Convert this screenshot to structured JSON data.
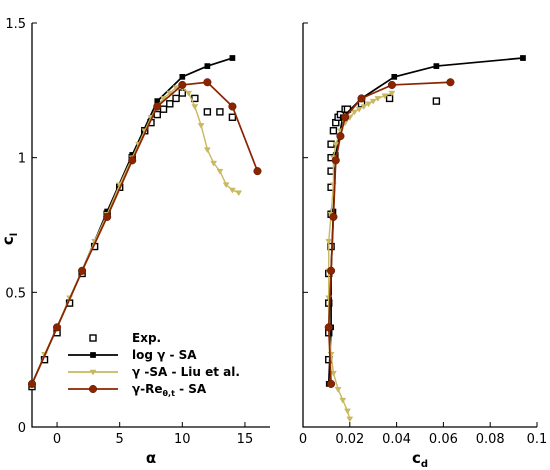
{
  "chart_data": [
    {
      "type": "line",
      "xlabel": "α",
      "ylabel_main": "c",
      "ylabel_sub": "l",
      "xlim": [
        -2,
        17
      ],
      "ylim": [
        0,
        1.5
      ],
      "xticks": [
        0,
        5,
        10,
        15
      ],
      "xtick_labels": [
        "0",
        "5",
        "10",
        "15"
      ],
      "yticks": [
        0,
        0.5,
        1,
        1.5
      ],
      "ytick_labels": [
        "0",
        "0.5",
        "1",
        "1.5"
      ],
      "series": [
        {
          "name": "Exp.",
          "key": "exp",
          "color": "#000000",
          "marker": "hollow-square",
          "line": false,
          "x": [
            -2,
            -1,
            0,
            1,
            2,
            3,
            4,
            5,
            6,
            7,
            7.5,
            8,
            8.5,
            9,
            9.5,
            10,
            11,
            12,
            13,
            14
          ],
          "y": [
            0.15,
            0.25,
            0.35,
            0.46,
            0.57,
            0.67,
            0.79,
            0.89,
            1.0,
            1.1,
            1.13,
            1.16,
            1.18,
            1.2,
            1.22,
            1.24,
            1.22,
            1.17,
            1.17,
            1.15
          ]
        },
        {
          "name": "log γ - SA",
          "key": "log_sa",
          "color": "#000000",
          "marker": "filled-square",
          "line": true,
          "x": [
            -2,
            0,
            2,
            4,
            6,
            8,
            10,
            12,
            14
          ],
          "y": [
            0.16,
            0.37,
            0.58,
            0.8,
            1.01,
            1.21,
            1.3,
            1.34,
            1.37
          ]
        },
        {
          "name": "γ -SA - Liu et al.",
          "key": "liu",
          "color": "#c8b860",
          "marker": "triangle-down",
          "line": true,
          "x": [
            -2,
            -1,
            0,
            1,
            2,
            3,
            4,
            5,
            6,
            6.5,
            7,
            7.5,
            8,
            8.5,
            9,
            9.5,
            10,
            10.5,
            11,
            11.5,
            12,
            12.5,
            13,
            13.5,
            14,
            14.5
          ],
          "y": [
            0.16,
            0.27,
            0.37,
            0.48,
            0.58,
            0.69,
            0.79,
            0.9,
            1.0,
            1.05,
            1.1,
            1.15,
            1.19,
            1.22,
            1.24,
            1.26,
            1.26,
            1.24,
            1.19,
            1.12,
            1.03,
            0.98,
            0.95,
            0.9,
            0.88,
            0.87
          ]
        },
        {
          "name": "γ-Re",
          "name_sub": "θ,t",
          "name_suffix": " - SA",
          "key": "re_theta",
          "color": "#8b2500",
          "marker": "filled-circle",
          "line": true,
          "x": [
            -2,
            0,
            2,
            4,
            6,
            8,
            10,
            12,
            14,
            16
          ],
          "y": [
            0.16,
            0.37,
            0.58,
            0.78,
            0.99,
            1.19,
            1.27,
            1.28,
            1.19,
            0.95
          ]
        }
      ]
    },
    {
      "type": "line",
      "xlabel_main": "c",
      "xlabel_sub": "d",
      "xlim": [
        0,
        0.1
      ],
      "ylim": [
        0,
        1.5
      ],
      "xticks": [
        0,
        0.02,
        0.04,
        0.06,
        0.08,
        0.1
      ],
      "xtick_labels": [
        "0",
        "0.02",
        "0.04",
        "0.06",
        "0.08",
        "0.1"
      ],
      "series": [
        {
          "name": "Exp.",
          "key": "exp",
          "color": "#000000",
          "marker": "hollow-square",
          "line": false,
          "x": [
            0.011,
            0.011,
            0.011,
            0.011,
            0.012,
            0.012,
            0.012,
            0.012,
            0.012,
            0.012,
            0.013,
            0.014,
            0.015,
            0.016,
            0.018,
            0.019,
            0.025,
            0.037,
            0.057
          ],
          "y": [
            0.25,
            0.35,
            0.46,
            0.57,
            0.67,
            0.79,
            0.89,
            0.95,
            1.0,
            1.05,
            1.1,
            1.13,
            1.15,
            1.16,
            1.18,
            1.18,
            1.2,
            1.22,
            1.21
          ]
        },
        {
          "name": "log γ - SA",
          "key": "log_sa",
          "color": "#000000",
          "marker": "filled-square",
          "line": true,
          "x": [
            0.011,
            0.012,
            0.012,
            0.013,
            0.014,
            0.017,
            0.025,
            0.039,
            0.057,
            0.094
          ],
          "y": [
            0.16,
            0.37,
            0.58,
            0.8,
            1.01,
            1.15,
            1.22,
            1.3,
            1.34,
            1.37
          ]
        },
        {
          "name": "γ -SA - Liu et al.",
          "key": "liu",
          "color": "#c8b860",
          "marker": "triangle-down",
          "line": true,
          "x": [
            0.02,
            0.019,
            0.017,
            0.015,
            0.013,
            0.012,
            0.011,
            0.011,
            0.011,
            0.011,
            0.012,
            0.013,
            0.013,
            0.014,
            0.016,
            0.018,
            0.02,
            0.022,
            0.024,
            0.026,
            0.028,
            0.03,
            0.032,
            0.035,
            0.038
          ],
          "y": [
            0.03,
            0.06,
            0.1,
            0.14,
            0.2,
            0.27,
            0.37,
            0.48,
            0.58,
            0.69,
            0.79,
            0.9,
            1.0,
            1.05,
            1.1,
            1.13,
            1.15,
            1.17,
            1.18,
            1.19,
            1.2,
            1.21,
            1.22,
            1.23,
            1.24
          ]
        },
        {
          "name": "γ-Re",
          "name_sub": "θ,t",
          "name_suffix": " - SA",
          "key": "re_theta",
          "color": "#8b2500",
          "marker": "filled-circle",
          "line": true,
          "x": [
            0.012,
            0.011,
            0.012,
            0.013,
            0.014,
            0.016,
            0.018,
            0.025,
            0.038,
            0.063
          ],
          "y": [
            0.16,
            0.37,
            0.58,
            0.78,
            0.99,
            1.08,
            1.15,
            1.22,
            1.27,
            1.28
          ]
        }
      ]
    }
  ],
  "legend": {
    "placement": "lower-left",
    "items": [
      {
        "key": "exp",
        "text": "Exp.",
        "sub": "",
        "suffix": ""
      },
      {
        "key": "log_sa",
        "text": "log γ - SA",
        "sub": "",
        "suffix": ""
      },
      {
        "key": "liu",
        "text": "γ -SA - Liu et al.",
        "sub": "",
        "suffix": ""
      },
      {
        "key": "re_theta",
        "text": "γ-Re",
        "sub": "θ,t",
        "suffix": " - SA"
      }
    ]
  }
}
